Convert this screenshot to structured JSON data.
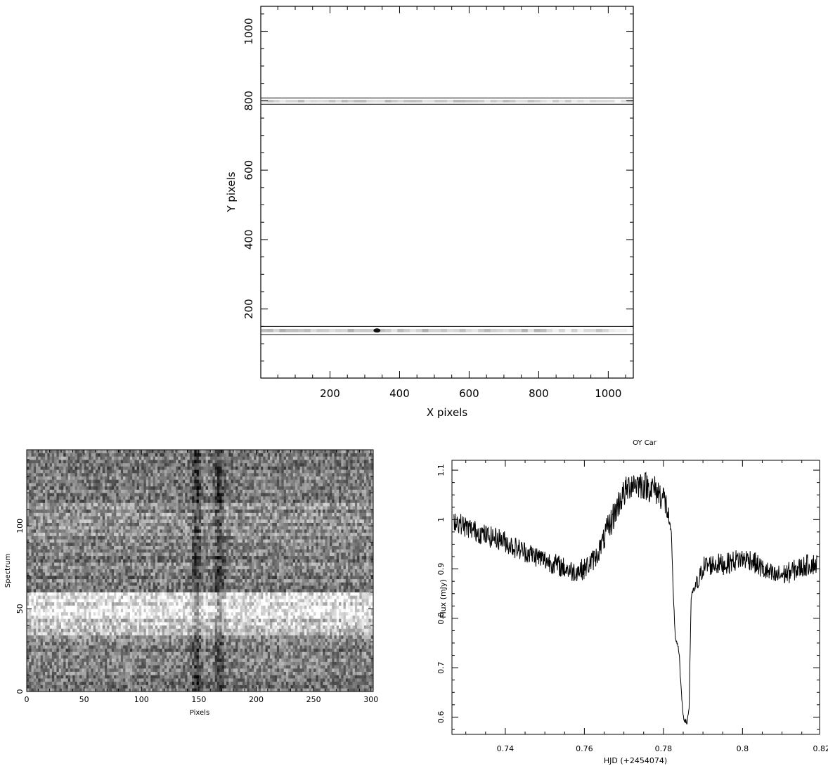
{
  "chart_data": [
    {
      "type": "heatmap",
      "xlabel": "X pixels",
      "ylabel": "Y pixels",
      "xlim": [
        1,
        1072
      ],
      "ylim": [
        1,
        1072
      ],
      "xticks": [
        200,
        400,
        600,
        800,
        1000
      ],
      "yticks": [
        200,
        400,
        600,
        800,
        1000
      ],
      "annotations": [
        {
          "kind": "spectrum-window",
          "y_range": [
            790,
            808
          ]
        },
        {
          "kind": "spectrum-window",
          "y_range": [
            126,
            150
          ]
        }
      ]
    },
    {
      "type": "heatmap",
      "xlabel": "Pixels",
      "ylabel": "Spectrum",
      "xlim": [
        0,
        302
      ],
      "ylim": [
        0,
        146
      ],
      "xticks": [
        0,
        50,
        100,
        150,
        200,
        250,
        300
      ],
      "yticks": [
        0,
        50,
        100
      ],
      "features": {
        "absorption_columns": [
          148,
          168
        ],
        "eclipse_rows": [
          34,
          59
        ]
      }
    },
    {
      "type": "line",
      "title": "OY Car",
      "xlabel": "HJD (+2454074)",
      "ylabel": "Flux (mJy)",
      "xlim": [
        0.7265,
        0.8195
      ],
      "ylim": [
        0.565,
        1.12
      ],
      "xticks": [
        "0.74",
        "0.76",
        "0.78",
        "0.8",
        "0.82"
      ],
      "yticks": [
        "0.6",
        "0.7",
        "0.8",
        "0.9",
        "1",
        "1.1"
      ],
      "series": [
        {
          "x": [
            0.727,
            0.73,
            0.733,
            0.736,
            0.739,
            0.742,
            0.745,
            0.748,
            0.751,
            0.754,
            0.757,
            0.76,
            0.763,
            0.766,
            0.769,
            0.772,
            0.775,
            0.778,
            0.78,
            0.781,
            0.782,
            0.7825,
            0.783,
            0.7835,
            0.784,
            0.7845,
            0.785,
            0.7855,
            0.786,
            0.7865,
            0.787,
            0.7875,
            0.788,
            0.789,
            0.79,
            0.793,
            0.796,
            0.799,
            0.802,
            0.805,
            0.808,
            0.811,
            0.814,
            0.817,
            0.819
          ],
          "values": [
            1.0,
            0.985,
            0.975,
            0.965,
            0.96,
            0.945,
            0.935,
            0.925,
            0.915,
            0.905,
            0.895,
            0.9,
            0.925,
            0.98,
            1.04,
            1.075,
            1.07,
            1.06,
            1.045,
            1.02,
            0.97,
            0.85,
            0.76,
            0.75,
            0.725,
            0.65,
            0.605,
            0.59,
            0.59,
            0.62,
            0.84,
            0.855,
            0.86,
            0.875,
            0.905,
            0.91,
            0.91,
            0.92,
            0.92,
            0.9,
            0.885,
            0.89,
            0.9,
            0.91,
            0.91
          ]
        }
      ]
    }
  ]
}
